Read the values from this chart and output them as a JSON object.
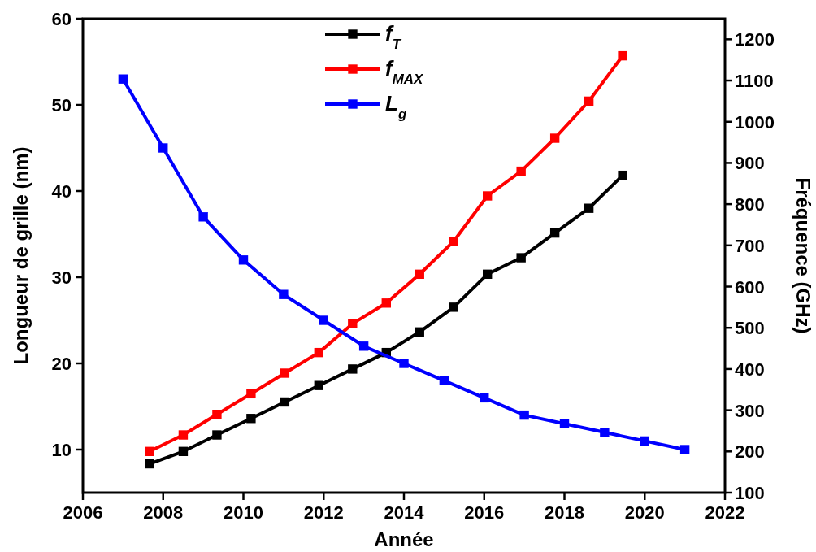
{
  "chart_data": {
    "type": "line",
    "xlabel": "Année",
    "ylabel": "Longueur de grille (nm)",
    "y2label": "Fréquence (GHz)",
    "xlim": [
      2006,
      2022
    ],
    "xticks": [
      2006,
      2008,
      2010,
      2012,
      2014,
      2016,
      2018,
      2020,
      2022
    ],
    "ylim": [
      5,
      60
    ],
    "yticks": [
      10,
      20,
      30,
      40,
      50,
      60
    ],
    "y2lim": [
      100,
      1250
    ],
    "y2ticks": [
      100,
      200,
      300,
      400,
      500,
      600,
      700,
      800,
      900,
      1000,
      1100,
      1200
    ],
    "grid": false,
    "legend": "top",
    "marker": "square",
    "line_style": "solid",
    "series": [
      {
        "name": "f$_{T}$",
        "color": "#000000",
        "axis": "y2",
        "x": [
          2007.66,
          2008.5,
          2009.34,
          2010.19,
          2011.03,
          2011.88,
          2012.72,
          2013.56,
          2014.39,
          2015.24,
          2016.08,
          2016.92,
          2017.76,
          2018.61,
          2019.45
        ],
        "values": [
          170,
          200,
          240,
          280,
          320,
          360,
          400,
          440,
          490,
          550,
          630,
          670,
          730,
          790,
          870
        ]
      },
      {
        "name": "f$_{MAX}$",
        "color": "#ff0000",
        "axis": "y2",
        "x": [
          2007.66,
          2008.5,
          2009.34,
          2010.19,
          2011.03,
          2011.88,
          2012.72,
          2013.56,
          2014.39,
          2015.24,
          2016.08,
          2016.92,
          2017.76,
          2018.61,
          2019.45
        ],
        "values": [
          200,
          240,
          290,
          340,
          390,
          440,
          510,
          560,
          630,
          710,
          820,
          880,
          960,
          1050,
          1160
        ]
      },
      {
        "name": "L$_{g}$",
        "color": "#0000ff",
        "x": [
          2007,
          2008,
          2009,
          2010,
          2011,
          2012,
          2013,
          2014,
          2015,
          2016,
          2017,
          2018,
          2019,
          2020,
          2021
        ],
        "values": [
          53,
          45,
          37,
          32,
          28,
          25,
          22,
          20,
          18,
          16,
          14,
          13,
          12,
          11,
          10
        ]
      }
    ]
  }
}
